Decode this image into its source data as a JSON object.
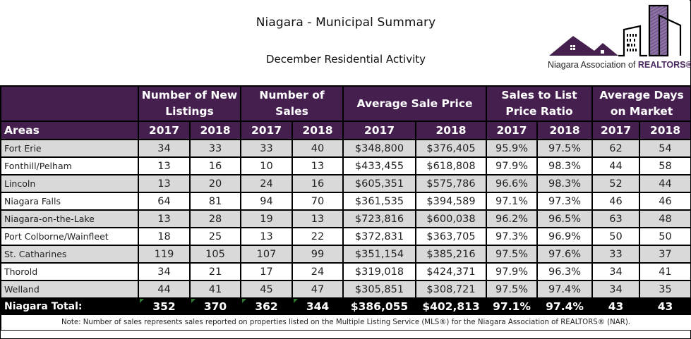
{
  "header": {
    "title": "Niagara - Municipal Summary",
    "subtitle": "December Residential Activity",
    "logo": {
      "icon": "house-skyline-logo-icon",
      "text_prefix": "Niagara Association of ",
      "text_brand": "REALTORS®",
      "brand_color": "#4b2a63"
    }
  },
  "table": {
    "group_headers": [
      "",
      "Number of New Listings",
      "Number of Sales",
      "Average Sale Price",
      "Sales to List Price Ratio",
      "Average Days on Market"
    ],
    "sub_headers": [
      "Areas",
      "2017",
      "2018",
      "2017",
      "2018",
      "2017",
      "2018",
      "2017",
      "2018",
      "2017",
      "2018"
    ],
    "rows": [
      {
        "area": "Fort Erie",
        "values": [
          "34",
          "33",
          "33",
          "40",
          "$348,800",
          "$376,405",
          "95.9%",
          "97.5%",
          "62",
          "54"
        ]
      },
      {
        "area": "Fonthill/Pelham",
        "values": [
          "13",
          "16",
          "10",
          "13",
          "$433,455",
          "$618,808",
          "97.9%",
          "98.3%",
          "44",
          "58"
        ]
      },
      {
        "area": "Lincoln",
        "values": [
          "13",
          "20",
          "24",
          "16",
          "$605,351",
          "$575,786",
          "96.6%",
          "98.3%",
          "52",
          "44"
        ]
      },
      {
        "area": "Niagara Falls",
        "values": [
          "64",
          "81",
          "94",
          "70",
          "$361,535",
          "$394,589",
          "97.1%",
          "97.3%",
          "46",
          "46"
        ]
      },
      {
        "area": "Niagara-on-the-Lake",
        "values": [
          "13",
          "28",
          "19",
          "13",
          "$723,816",
          "$600,038",
          "96.2%",
          "96.5%",
          "63",
          "48"
        ]
      },
      {
        "area": "Port Colborne/Wainfleet",
        "values": [
          "18",
          "25",
          "13",
          "22",
          "$372,831",
          "$363,705",
          "97.3%",
          "96.9%",
          "50",
          "50"
        ]
      },
      {
        "area": "St. Catharines",
        "values": [
          "119",
          "105",
          "107",
          "99",
          "$351,154",
          "$385,216",
          "97.5%",
          "97.6%",
          "33",
          "37"
        ]
      },
      {
        "area": "Thorold",
        "values": [
          "34",
          "21",
          "17",
          "24",
          "$319,018",
          "$424,371",
          "97.9%",
          "96.3%",
          "34",
          "41"
        ]
      },
      {
        "area": "Welland",
        "values": [
          "44",
          "41",
          "45",
          "47",
          "$305,851",
          "$308,721",
          "97.5%",
          "97.4%",
          "34",
          "35"
        ]
      }
    ],
    "total": {
      "label": "Niagara Total:",
      "values": [
        "352",
        "370",
        "362",
        "344",
        "$386,055",
        "$402,813",
        "97.1%",
        "97.4%",
        "43",
        "43"
      ]
    },
    "note": "Note: Number of sales represents sales reported on properties listed on the Multiple Listing Service (MLS®) for the Niagara Association of REALTORS® (NAR).",
    "colors": {
      "header_bg": "#45204f",
      "shaded_row": "#d9d9d9",
      "total_bg": "#000000"
    }
  }
}
